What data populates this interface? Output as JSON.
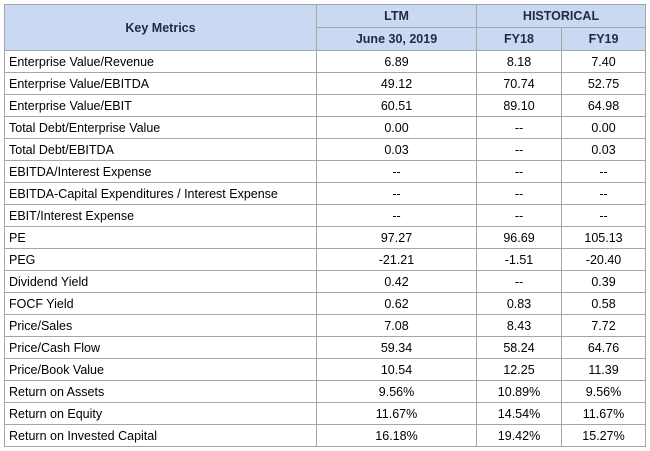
{
  "header": {
    "key_metrics": "Key Metrics",
    "ltm": "LTM",
    "historical": "HISTORICAL",
    "ltm_date": "June 30, 2019",
    "fy18": "FY18",
    "fy19": "FY19"
  },
  "rows": [
    {
      "metric": "Enterprise Value/Revenue",
      "ltm": "6.89",
      "fy18": "8.18",
      "fy19": "7.40"
    },
    {
      "metric": "Enterprise Value/EBITDA",
      "ltm": "49.12",
      "fy18": "70.74",
      "fy19": "52.75"
    },
    {
      "metric": "Enterprise Value/EBIT",
      "ltm": "60.51",
      "fy18": "89.10",
      "fy19": "64.98"
    },
    {
      "metric": "Total Debt/Enterprise Value",
      "ltm": "0.00",
      "fy18": "--",
      "fy19": "0.00"
    },
    {
      "metric": "Total Debt/EBITDA",
      "ltm": "0.03",
      "fy18": "--",
      "fy19": "0.03"
    },
    {
      "metric": "EBITDA/Interest Expense",
      "ltm": "--",
      "fy18": "--",
      "fy19": "--"
    },
    {
      "metric": "EBITDA-Capital Expenditures / Interest Expense",
      "ltm": "--",
      "fy18": "--",
      "fy19": "--"
    },
    {
      "metric": "EBIT/Interest Expense",
      "ltm": "--",
      "fy18": "--",
      "fy19": "--"
    },
    {
      "metric": "PE",
      "ltm": "97.27",
      "fy18": "96.69",
      "fy19": "105.13"
    },
    {
      "metric": "PEG",
      "ltm": "-21.21",
      "fy18": "-1.51",
      "fy19": "-20.40"
    },
    {
      "metric": "Dividend Yield",
      "ltm": "0.42",
      "fy18": "--",
      "fy19": "0.39"
    },
    {
      "metric": "FOCF Yield",
      "ltm": "0.62",
      "fy18": "0.83",
      "fy19": "0.58"
    },
    {
      "metric": "Price/Sales",
      "ltm": "7.08",
      "fy18": "8.43",
      "fy19": "7.72"
    },
    {
      "metric": "Price/Cash Flow",
      "ltm": "59.34",
      "fy18": "58.24",
      "fy19": "64.76"
    },
    {
      "metric": "Price/Book Value",
      "ltm": "10.54",
      "fy18": "12.25",
      "fy19": "11.39"
    },
    {
      "metric": "Return on Assets",
      "ltm": "9.56%",
      "fy18": "10.89%",
      "fy19": "9.56%"
    },
    {
      "metric": "Return on Equity",
      "ltm": "11.67%",
      "fy18": "14.54%",
      "fy19": "11.67%"
    },
    {
      "metric": "Return on Invested Capital",
      "ltm": "16.18%",
      "fy18": "19.42%",
      "fy19": "15.27%"
    }
  ],
  "colors": {
    "header_fill": "#c9d9f1",
    "header_text": "#1f2a44",
    "grid_line": "#a6a6a6"
  }
}
